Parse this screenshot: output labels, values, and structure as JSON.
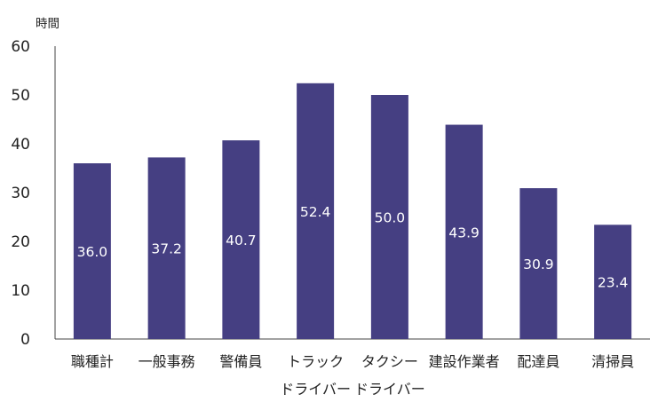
{
  "chart_data": {
    "type": "bar",
    "categories": [
      "職種計",
      "一般事務",
      "警備員",
      "トラック",
      "タクシー",
      "建設作業者",
      "配達員",
      "清掃員"
    ],
    "x_sublabels": [
      "ドライバー",
      "ドライバー"
    ],
    "series": [
      {
        "values": [
          36.0,
          37.2,
          40.7,
          52.4,
          50.0,
          43.9,
          30.9,
          23.4
        ]
      }
    ],
    "data_labels": [
      "36.0",
      "37.2",
      "40.7",
      "52.4",
      "50.0",
      "43.9",
      "30.9",
      "23.4"
    ],
    "y_unit": "時間",
    "ylim": [
      0,
      60
    ],
    "yticks": [
      "0",
      "10",
      "20",
      "30",
      "40",
      "50",
      "60"
    ],
    "grid": false,
    "bar_color": "#453f82",
    "axis_color": "#444444"
  }
}
